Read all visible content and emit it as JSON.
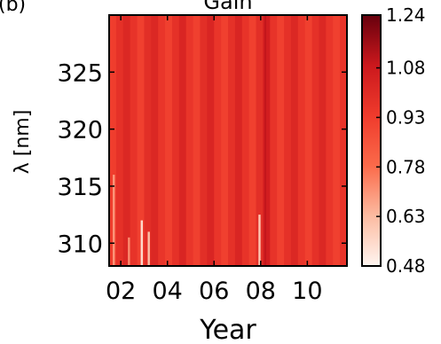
{
  "panel_label": "(b)",
  "chart_data": {
    "type": "heatmap",
    "title": "Gain",
    "xlabel": "Year",
    "ylabel": "λ [nm]",
    "xlim": [
      2001.5,
      2011.7
    ],
    "ylim": [
      308,
      330
    ],
    "x_ticks": [
      2002,
      2004,
      2006,
      2008,
      2010
    ],
    "x_tick_labels": [
      "02",
      "04",
      "06",
      "08",
      "10"
    ],
    "y_ticks": [
      310,
      315,
      320,
      325
    ],
    "y_tick_labels": [
      "310",
      "315",
      "320",
      "325"
    ],
    "colorbar": {
      "min": 0.48,
      "max": 1.24,
      "ticks": [
        0.48,
        0.63,
        0.78,
        0.93,
        1.08,
        1.24
      ],
      "tick_labels": [
        "0.48",
        "0.63",
        "0.78",
        "0.93",
        "1.08",
        "1.24"
      ],
      "colors": [
        "#fff5f0",
        "#fcbba1",
        "#fb6a4a",
        "#ef3b2c",
        "#cb181d",
        "#67000d"
      ]
    },
    "columns": [
      {
        "year": 2001.6,
        "gain": 0.93
      },
      {
        "year": 2001.9,
        "gain": 0.98
      },
      {
        "year": 2002.2,
        "gain": 1.02
      },
      {
        "year": 2002.5,
        "gain": 0.97
      },
      {
        "year": 2002.8,
        "gain": 0.92
      },
      {
        "year": 2003.1,
        "gain": 0.99
      },
      {
        "year": 2003.4,
        "gain": 1.02
      },
      {
        "year": 2003.7,
        "gain": 0.96
      },
      {
        "year": 2004.0,
        "gain": 0.92
      },
      {
        "year": 2004.3,
        "gain": 0.98
      },
      {
        "year": 2004.6,
        "gain": 1.03
      },
      {
        "year": 2004.9,
        "gain": 0.96
      },
      {
        "year": 2005.2,
        "gain": 0.92
      },
      {
        "year": 2005.5,
        "gain": 0.99
      },
      {
        "year": 2005.8,
        "gain": 1.03
      },
      {
        "year": 2006.1,
        "gain": 0.96
      },
      {
        "year": 2006.4,
        "gain": 0.92
      },
      {
        "year": 2006.7,
        "gain": 0.98
      },
      {
        "year": 2007.0,
        "gain": 1.03
      },
      {
        "year": 2007.3,
        "gain": 0.97
      },
      {
        "year": 2007.6,
        "gain": 0.92
      },
      {
        "year": 2007.9,
        "gain": 0.99
      },
      {
        "year": 2008.2,
        "gain": 1.06
      },
      {
        "year": 2008.5,
        "gain": 0.97
      },
      {
        "year": 2008.8,
        "gain": 0.92
      },
      {
        "year": 2009.1,
        "gain": 0.98
      },
      {
        "year": 2009.4,
        "gain": 1.02
      },
      {
        "year": 2009.7,
        "gain": 0.96
      },
      {
        "year": 2010.0,
        "gain": 0.92
      },
      {
        "year": 2010.3,
        "gain": 0.98
      },
      {
        "year": 2010.6,
        "gain": 1.02
      },
      {
        "year": 2010.9,
        "gain": 0.96
      },
      {
        "year": 2011.2,
        "gain": 0.92
      },
      {
        "year": 2011.5,
        "gain": 0.97
      }
    ],
    "low_gain_streaks": [
      {
        "year": 2001.7,
        "from_nm": 308,
        "to_nm": 316,
        "gain": 0.7
      },
      {
        "year": 2002.35,
        "from_nm": 308,
        "to_nm": 310.5,
        "gain": 0.72
      },
      {
        "year": 2002.9,
        "from_nm": 308,
        "to_nm": 312,
        "gain": 0.55
      },
      {
        "year": 2003.2,
        "from_nm": 308,
        "to_nm": 311,
        "gain": 0.62
      },
      {
        "year": 2007.95,
        "from_nm": 308,
        "to_nm": 312.5,
        "gain": 0.6
      }
    ],
    "high_gain_line": {
      "year": 2008.2,
      "gain": 1.1
    }
  }
}
